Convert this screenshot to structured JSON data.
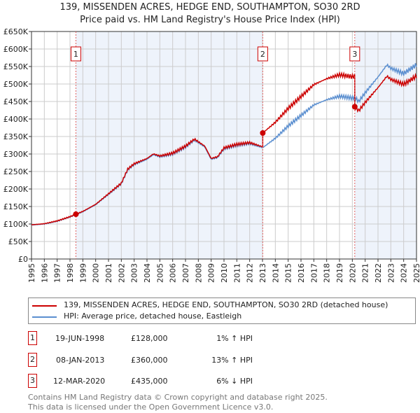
{
  "title": "139, MISSENDEN ACRES, HEDGE END, SOUTHAMPTON, SO30 2RD",
  "subtitle": "Price paid vs. HM Land Registry's House Price Index (HPI)",
  "chart_data": {
    "type": "line",
    "ylim": [
      0,
      650000
    ],
    "xlim": [
      1995,
      2025
    ],
    "yticks": [
      "£0",
      "£50K",
      "£100K",
      "£150K",
      "£200K",
      "£250K",
      "£300K",
      "£350K",
      "£400K",
      "£450K",
      "£500K",
      "£550K",
      "£600K",
      "£650K"
    ],
    "xticks": [
      "1995",
      "1996",
      "1997",
      "1998",
      "1999",
      "2000",
      "2001",
      "2002",
      "2003",
      "2004",
      "2005",
      "2006",
      "2007",
      "2008",
      "2009",
      "2010",
      "2011",
      "2012",
      "2013",
      "2014",
      "2015",
      "2016",
      "2017",
      "2018",
      "2019",
      "2020",
      "2021",
      "2022",
      "2023",
      "2024",
      "2025"
    ],
    "grid": true,
    "hpi": {
      "name": "HPI: Average price, detached house, Eastleigh",
      "color": "#5b8fd0",
      "x": [
        1995,
        1996,
        1997,
        1998,
        1998.46,
        1999,
        2000,
        2001,
        2002,
        2002.5,
        2003,
        2004,
        2004.5,
        2005,
        2006,
        2007,
        2007.7,
        2008.5,
        2009,
        2009.5,
        2010,
        2011,
        2012,
        2013.02,
        2014,
        2015,
        2016,
        2017,
        2018,
        2019,
        2020,
        2020.19,
        2020.5,
        2021,
        2022,
        2022.7,
        2023,
        2024,
        2025
      ],
      "y": [
        97000,
        100000,
        108000,
        120000,
        127000,
        135000,
        155000,
        185000,
        215000,
        255000,
        270000,
        285000,
        298000,
        292000,
        300000,
        320000,
        340000,
        320000,
        285000,
        290000,
        315000,
        325000,
        330000,
        318000,
        345000,
        380000,
        410000,
        440000,
        455000,
        465000,
        460000,
        462000,
        450000,
        475000,
        520000,
        555000,
        545000,
        530000,
        555000
      ]
    },
    "property": {
      "name": "139, MISSENDEN ACRES, HEDGE END, SOUTHAMPTON, SO30 2RD (detached house)",
      "color": "#cc0000"
    },
    "sales": [
      {
        "label": "1",
        "x": 1998.46,
        "date": "19-JUN-1998",
        "price": "£128,000",
        "value": 128000,
        "hpi": "1% ↑ HPI"
      },
      {
        "label": "2",
        "x": 2013.02,
        "date": "08-JAN-2013",
        "price": "£360,000",
        "value": 360000,
        "hpi": "13% ↑ HPI"
      },
      {
        "label": "3",
        "x": 2020.19,
        "date": "12-MAR-2020",
        "price": "£435,000",
        "value": 435000,
        "hpi": "6% ↓ HPI"
      }
    ]
  },
  "footer": [
    "Contains HM Land Registry data © Crown copyright and database right 2025.",
    "This data is licensed under the Open Government Licence v3.0."
  ]
}
